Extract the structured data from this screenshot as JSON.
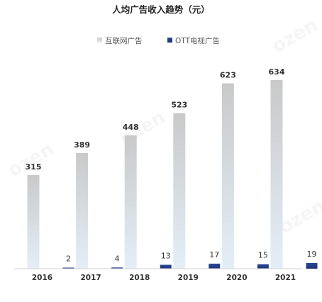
{
  "chart_data": {
    "type": "bar",
    "title": "人均广告收入趋势（元）",
    "categories": [
      "2016",
      "2017",
      "2018",
      "2019",
      "2020",
      "2021"
    ],
    "series": [
      {
        "name": "互联网广告",
        "values": [
          315,
          389,
          448,
          523,
          623,
          634
        ]
      },
      {
        "name": "OTT电视广告",
        "values": [
          2,
          4,
          13,
          17,
          15,
          19
        ]
      }
    ],
    "legend_position": "top-center",
    "grid": false,
    "ylim": [
      0,
      634
    ]
  },
  "colors": {
    "series1_top": "#c9c9c9",
    "series1_bottom": "#e4eef8",
    "series2_top": "#2b4a9a",
    "series2_bottom": "#1c3170",
    "axis": "#d0d0d0"
  },
  "watermark": "ozen"
}
